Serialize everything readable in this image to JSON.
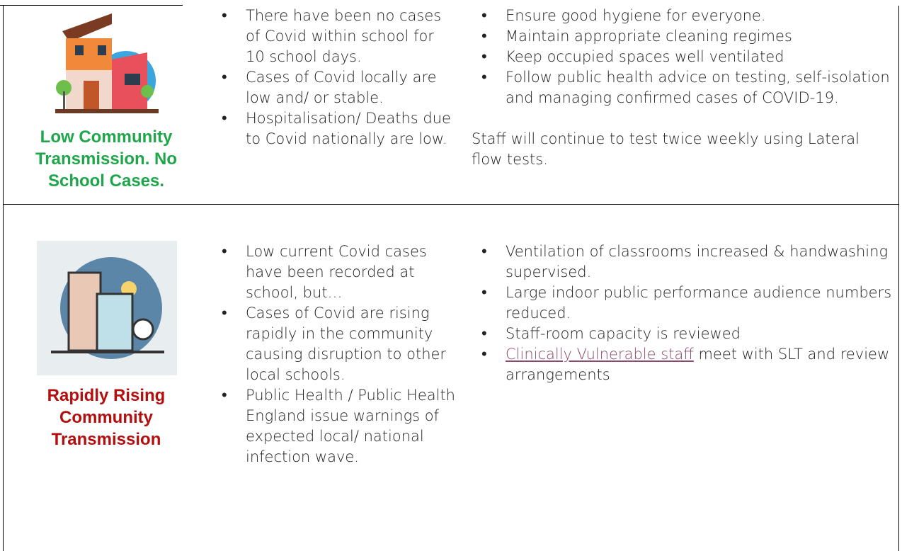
{
  "rows": [
    {
      "level": "Low Community Transmission. No School Cases.",
      "conditions": [
        "There have been no cases of Covid within school for 10 school days.",
        "Cases of Covid locally are low and/ or stable.",
        "Hospitalisation/ Deaths due to Covid nationally are low."
      ],
      "actions": [
        "Ensure good hygiene for everyone.",
        "Maintain appropriate cleaning regimes",
        "Keep occupied spaces well ventilated",
        "Follow public health advice on testing, self-isolation and managing confirmed cases of COVID-19."
      ],
      "note": "Staff will continue to test twice weekly using Lateral flow tests."
    },
    {
      "level": "Rapidly Rising Community Transmission",
      "conditions": [
        "Low current Covid cases have been recorded at school, but…",
        "Cases of Covid are rising rapidly in the community causing disruption to other local schools.",
        "Public Health / Public Health England issue warnings of expected local/ national infection wave."
      ],
      "actions": [
        "Ventilation of classrooms increased & handwashing supervised.",
        "Large indoor public performance audience numbers reduced.",
        "Staff-room capacity is reviewed"
      ],
      "link_action": {
        "link": "Clinically Vulnerable staff",
        "rest": " meet with SLT and review arrangements"
      }
    }
  ]
}
